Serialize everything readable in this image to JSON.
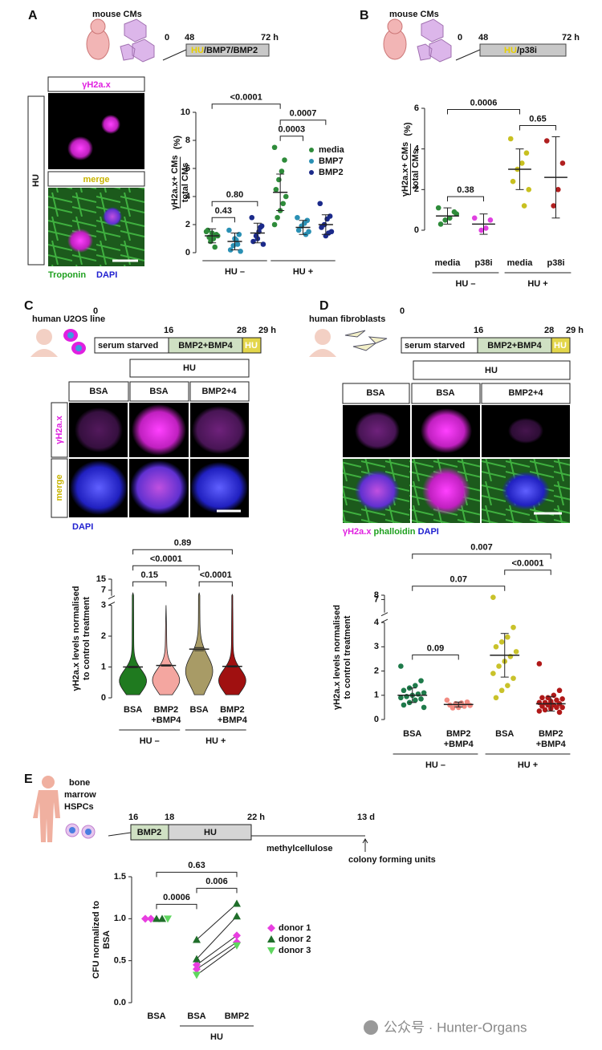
{
  "figure": {
    "panels": [
      {
        "letter": "A",
        "label": "mouse CMs",
        "times": [
          "0",
          "48",
          "72 h"
        ],
        "treatment": [
          "HU",
          "/BMP7/BMP2"
        ],
        "images": {
          "condition": "HU",
          "rows": [
            "γH2a.x",
            "merge"
          ],
          "stains": [
            "Troponin",
            "DAPI"
          ]
        }
      },
      {
        "letter": "B",
        "label": "mouse CMs",
        "times": [
          "0",
          "48",
          "72 h"
        ],
        "treatment": [
          "HU",
          "/p38i"
        ]
      },
      {
        "letter": "C",
        "label": "human U2OS line",
        "times": [
          "0",
          "16",
          "28",
          "29 h"
        ],
        "steps": [
          "serum starved",
          "BMP2+BMP4",
          "HU"
        ],
        "images": {
          "condition": "HU",
          "columns": [
            "BSA",
            "BSA",
            "BMP2+4"
          ],
          "rows": [
            "γH2a.x",
            "merge"
          ],
          "stains": [
            "DAPI"
          ]
        }
      },
      {
        "letter": "D",
        "label": "human fibroblasts",
        "times": [
          "0",
          "16",
          "28",
          "29 h"
        ],
        "steps": [
          "serum starved",
          "BMP2+BMP4",
          "HU"
        ],
        "images": {
          "condition": "HU",
          "columns": [
            "BSA",
            "BSA",
            "BMP2+4"
          ],
          "stains": [
            "γH2a.x",
            "phalloidin",
            "DAPI"
          ]
        }
      },
      {
        "letter": "E",
        "label": [
          "bone",
          "marrow",
          "HSPCs"
        ],
        "times": [
          "16",
          "18",
          "22 h",
          "13 d"
        ],
        "steps": [
          "BMP2",
          "HU",
          "methylcellulose"
        ],
        "readout": "colony forming units"
      }
    ],
    "watermark": "公众号 · Hunter-Organs"
  },
  "chart_data": [
    {
      "type": "dot",
      "ylabel": [
        "γH2a.x+ CMs",
        "total CMs"
      ],
      "yunit": "(%)",
      "ylim": [
        0,
        10
      ],
      "yticks": [
        0,
        2,
        4,
        6,
        8,
        10
      ],
      "legend": [
        {
          "name": "media",
          "color": "#2e8b3a"
        },
        {
          "name": "BMP7",
          "color": "#2a90b4"
        },
        {
          "name": "BMP2",
          "color": "#1b2a8a"
        }
      ],
      "columns": [
        {
          "color": "#2e8b3a",
          "points": [
            1.5,
            1.3,
            1.0,
            0.8,
            1.6,
            1.2,
            0.4,
            1.4,
            1.1
          ],
          "mean": 1.2,
          "sd": 0.5
        },
        {
          "color": "#2a90b4",
          "points": [
            1.6,
            1.3,
            0.9,
            0.5,
            0.2,
            0.1,
            0.6,
            1.0
          ],
          "mean": 0.8,
          "sd": 0.6
        },
        {
          "color": "#1b2a8a",
          "points": [
            2.5,
            1.9,
            1.5,
            1.2,
            0.8,
            0.6,
            1.8,
            1.0
          ],
          "mean": 1.4,
          "sd": 0.7
        },
        {
          "color": "#2e8b3a",
          "points": [
            7.5,
            6.6,
            5.8,
            5.2,
            4.5,
            4.0,
            3.5,
            3.0,
            2.5,
            2.0
          ],
          "mean": 4.3,
          "sd": 1.3
        },
        {
          "color": "#2a90b4",
          "points": [
            2.5,
            2.3,
            2.1,
            1.9,
            1.6,
            1.5,
            1.3
          ],
          "mean": 1.8,
          "sd": 0.5
        },
        {
          "color": "#1b2a8a",
          "points": [
            3.5,
            2.6,
            2.4,
            2.0,
            1.8,
            1.5,
            1.4,
            1.2
          ],
          "mean": 2.0,
          "sd": 0.7
        }
      ],
      "groups": [
        {
          "label": "HU –",
          "span": [
            0,
            2
          ]
        },
        {
          "label": "HU +",
          "span": [
            3,
            5
          ]
        }
      ],
      "comparisons": [
        {
          "label": "0.43",
          "between": [
            0,
            1
          ]
        },
        {
          "label": "0.80",
          "between": [
            0,
            2
          ]
        },
        {
          "label": "0.0003",
          "between": [
            3,
            4
          ]
        },
        {
          "label": "0.0007",
          "between": [
            3,
            5
          ]
        },
        {
          "label": "<0.0001",
          "between": [
            0,
            3
          ]
        }
      ]
    },
    {
      "type": "dot",
      "ylabel": [
        "γH2a.x+ CMs",
        "total CMs"
      ],
      "yunit": "(%)",
      "ylim": [
        0,
        6
      ],
      "yticks": [
        0,
        2,
        4,
        6
      ],
      "columns": [
        {
          "label": [
            "media"
          ],
          "color": "#2e8b3a",
          "points": [
            1.1,
            0.9,
            0.6,
            0.5,
            0.3,
            0.8
          ],
          "mean": 0.7,
          "sd": 0.4
        },
        {
          "label": [
            "p38i"
          ],
          "color": "#e040e0",
          "points": [
            0.6,
            0.5,
            0.1,
            0.0
          ],
          "mean": 0.3,
          "sd": 0.5
        },
        {
          "label": [
            "media"
          ],
          "color": "#c8c020",
          "points": [
            4.5,
            3.8,
            3.3,
            3.0,
            2.4,
            2.0,
            1.2
          ],
          "mean": 3.0,
          "sd": 1.0
        },
        {
          "label": [
            "p38i"
          ],
          "color": "#b02020",
          "points": [
            4.4,
            3.3,
            2.0,
            1.2
          ],
          "mean": 2.6,
          "sd": 2.0
        }
      ],
      "groups": [
        {
          "label": "HU –",
          "span": [
            0,
            1
          ]
        },
        {
          "label": "HU +",
          "span": [
            2,
            3
          ]
        }
      ],
      "comparisons": [
        {
          "label": "0.38",
          "between": [
            0,
            1
          ]
        },
        {
          "label": "0.65",
          "between": [
            2,
            3
          ]
        },
        {
          "label": "0.0006",
          "between": [
            0,
            2
          ]
        }
      ]
    },
    {
      "type": "violin",
      "ylabel": [
        "γH2a.x levels normalised",
        "to control treatment"
      ],
      "ylim": [
        0,
        15
      ],
      "ybreak": 3,
      "yticks": [
        0,
        1,
        2,
        3,
        7,
        15
      ],
      "columns": [
        {
          "label": [
            "BSA"
          ],
          "color": "#1f7a1f",
          "mean": 1.0,
          "sem": 0.02,
          "max": 5
        },
        {
          "label": [
            "BMP2",
            "+BMP4"
          ],
          "color": "#f4a6a0",
          "mean": 1.05,
          "sem": 0.02,
          "max": 3
        },
        {
          "label": [
            "BSA"
          ],
          "color": "#a89b66",
          "mean": 1.58,
          "sem": 0.05,
          "max": 5
        },
        {
          "label": [
            "BMP2",
            "+BMP4"
          ],
          "color": "#a01010",
          "mean": 1.02,
          "sem": 0.02,
          "max": 4
        }
      ],
      "groups": [
        {
          "label": "HU –",
          "span": [
            0,
            1
          ]
        },
        {
          "label": "HU +",
          "span": [
            2,
            3
          ]
        }
      ],
      "comparisons": [
        {
          "label": "0.15",
          "between": [
            0,
            1
          ]
        },
        {
          "label": "<0.0001",
          "between": [
            2,
            3
          ]
        },
        {
          "label": "<0.0001",
          "between": [
            0,
            2
          ]
        },
        {
          "label": "0.89",
          "between": [
            0,
            3
          ]
        }
      ]
    },
    {
      "type": "dot",
      "ylabel": [
        "γH2a.x levels normalised",
        "to control treatment"
      ],
      "ylim": [
        0,
        8
      ],
      "ybreak": 4,
      "yticks": [
        0,
        1,
        2,
        3,
        4,
        7,
        8
      ],
      "columns": [
        {
          "label": [
            "BSA"
          ],
          "color": "#1e7a4a",
          "points": [
            2.2,
            1.6,
            1.4,
            1.3,
            1.2,
            1.1,
            1.05,
            1.0,
            0.95,
            0.9,
            0.85,
            0.8,
            0.7,
            0.6,
            0.5
          ],
          "mean": 1.0,
          "sd": 0.3
        },
        {
          "label": [
            "BMP2",
            "+BMP4"
          ],
          "color": "#f28b82",
          "points": [
            0.8,
            0.72,
            0.68,
            0.65,
            0.6,
            0.58,
            0.55,
            0.5,
            0.48
          ],
          "mean": 0.62,
          "sd": 0.1
        },
        {
          "label": [
            "BSA"
          ],
          "color": "#c9c22a",
          "points": [
            7.5,
            3.8,
            3.4,
            3.2,
            3.0,
            2.8,
            2.6,
            2.4,
            2.2,
            1.9,
            1.7,
            1.4,
            1.2,
            0.9
          ],
          "mean": 2.65,
          "sd": 0.9
        },
        {
          "label": [
            "BMP2",
            "+BMP4"
          ],
          "color": "#b01818",
          "points": [
            2.3,
            1.2,
            1.0,
            0.9,
            0.9,
            0.85,
            0.8,
            0.75,
            0.7,
            0.7,
            0.65,
            0.6,
            0.6,
            0.55,
            0.5,
            0.5,
            0.45,
            0.4,
            0.35,
            0.3
          ],
          "mean": 0.65,
          "sd": 0.3
        }
      ],
      "groups": [
        {
          "label": "HU –",
          "span": [
            0,
            1
          ]
        },
        {
          "label": "HU +",
          "span": [
            2,
            3
          ]
        }
      ],
      "comparisons": [
        {
          "label": "0.09",
          "between": [
            0,
            1
          ]
        },
        {
          "label": "0.07",
          "between": [
            0,
            2
          ]
        },
        {
          "label": "<0.0001",
          "between": [
            2,
            3
          ]
        },
        {
          "label": "0.007",
          "between": [
            0,
            3
          ]
        }
      ]
    },
    {
      "type": "paired",
      "ylabel": [
        "CFU normalized to",
        "BSA"
      ],
      "ylim": [
        0,
        1.5
      ],
      "yticks": [
        {
          "value": 0,
          "label": "0.0"
        },
        0.5,
        {
          "value": 1,
          "label": "1.0"
        },
        1.5
      ],
      "columns": [
        {
          "label": [
            "BSA"
          ]
        },
        {
          "label": [
            "BSA"
          ]
        },
        {
          "label": [
            "BMP2"
          ]
        }
      ],
      "series": [
        {
          "name": "donor 1",
          "color": "#e83ee0",
          "marker": "diamond",
          "values": [
            [
              1.0,
              0.45,
              0.8
            ],
            [
              1.0,
              0.4,
              0.72
            ]
          ]
        },
        {
          "name": "donor 2",
          "color": "#1f6e2a",
          "marker": "triangle",
          "values": [
            [
              1.0,
              0.75,
              1.18
            ],
            [
              1.0,
              0.52,
              1.03
            ]
          ]
        },
        {
          "name": "donor 3",
          "color": "#5fd65f",
          "marker": "triangle-down",
          "values": [
            [
              1.0,
              0.33,
              0.68
            ]
          ]
        }
      ],
      "groups": [
        {
          "label": "HU",
          "span": [
            1,
            2
          ]
        }
      ],
      "comparisons": [
        {
          "label": "0.0006",
          "between": [
            0,
            1
          ]
        },
        {
          "label": "0.006",
          "between": [
            1,
            2
          ]
        },
        {
          "label": "0.63",
          "between": [
            0,
            2
          ]
        }
      ]
    }
  ]
}
